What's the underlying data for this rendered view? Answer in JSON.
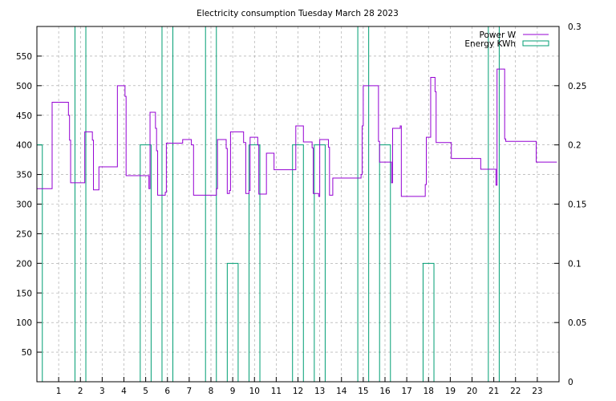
{
  "chart_data": {
    "type": "line",
    "title": "Electricity consumption Tuesday March 28 2023",
    "xlabel": "",
    "ylabel": "",
    "y2label": "",
    "xlim": [
      0,
      24
    ],
    "ylim": [
      0,
      600
    ],
    "y2lim": [
      0,
      0.3
    ],
    "grid": true,
    "legend_position": "top-right",
    "x_ticks": [
      1,
      2,
      3,
      4,
      5,
      6,
      7,
      8,
      9,
      10,
      11,
      12,
      13,
      14,
      15,
      16,
      17,
      18,
      19,
      20,
      21,
      22,
      23
    ],
    "y_ticks": [
      50,
      100,
      150,
      200,
      250,
      300,
      350,
      400,
      450,
      500,
      550
    ],
    "y2_ticks": [
      0,
      0.05,
      0.1,
      0.15,
      0.2,
      0.25,
      0.3
    ],
    "series": [
      {
        "name": "Power W",
        "color": "#9400d3",
        "axis": "y",
        "style": "steps",
        "points": [
          [
            0.0,
            326
          ],
          [
            0.7,
            326
          ],
          [
            0.7,
            472
          ],
          [
            1.45,
            472
          ],
          [
            1.45,
            450
          ],
          [
            1.5,
            450
          ],
          [
            1.5,
            408
          ],
          [
            1.55,
            408
          ],
          [
            1.55,
            336
          ],
          [
            2.2,
            336
          ],
          [
            2.2,
            422
          ],
          [
            2.55,
            422
          ],
          [
            2.55,
            408
          ],
          [
            2.6,
            408
          ],
          [
            2.6,
            324
          ],
          [
            2.85,
            324
          ],
          [
            2.85,
            363
          ],
          [
            3.7,
            363
          ],
          [
            3.7,
            500
          ],
          [
            4.05,
            500
          ],
          [
            4.05,
            482
          ],
          [
            4.1,
            482
          ],
          [
            4.1,
            348
          ],
          [
            5.15,
            348
          ],
          [
            5.15,
            326
          ],
          [
            5.2,
            326
          ],
          [
            5.2,
            455
          ],
          [
            5.45,
            455
          ],
          [
            5.45,
            428
          ],
          [
            5.5,
            428
          ],
          [
            5.5,
            390
          ],
          [
            5.55,
            390
          ],
          [
            5.55,
            315
          ],
          [
            5.9,
            315
          ],
          [
            5.9,
            320
          ],
          [
            5.95,
            320
          ],
          [
            5.95,
            403
          ],
          [
            6.7,
            403
          ],
          [
            6.7,
            409
          ],
          [
            7.1,
            409
          ],
          [
            7.1,
            400
          ],
          [
            7.2,
            400
          ],
          [
            7.2,
            315
          ],
          [
            8.25,
            315
          ],
          [
            8.25,
            326
          ],
          [
            8.3,
            326
          ],
          [
            8.3,
            409
          ],
          [
            8.7,
            409
          ],
          [
            8.7,
            394
          ],
          [
            8.75,
            394
          ],
          [
            8.75,
            318
          ],
          [
            8.85,
            318
          ],
          [
            8.85,
            323
          ],
          [
            8.9,
            323
          ],
          [
            8.9,
            422
          ],
          [
            9.5,
            422
          ],
          [
            9.5,
            404
          ],
          [
            9.6,
            404
          ],
          [
            9.6,
            318
          ],
          [
            9.75,
            318
          ],
          [
            9.75,
            323
          ],
          [
            9.8,
            323
          ],
          [
            9.8,
            413
          ],
          [
            10.15,
            413
          ],
          [
            10.15,
            400
          ],
          [
            10.2,
            400
          ],
          [
            10.2,
            317
          ],
          [
            10.55,
            317
          ],
          [
            10.55,
            386
          ],
          [
            10.9,
            386
          ],
          [
            10.9,
            358
          ],
          [
            11.9,
            358
          ],
          [
            11.9,
            432
          ],
          [
            12.25,
            432
          ],
          [
            12.25,
            405
          ],
          [
            12.65,
            405
          ],
          [
            12.65,
            395
          ],
          [
            12.7,
            395
          ],
          [
            12.7,
            318
          ],
          [
            12.95,
            318
          ],
          [
            12.95,
            313
          ],
          [
            13.0,
            313
          ],
          [
            13.0,
            409
          ],
          [
            13.4,
            409
          ],
          [
            13.4,
            396
          ],
          [
            13.45,
            396
          ],
          [
            13.45,
            315
          ],
          [
            13.6,
            315
          ],
          [
            13.6,
            344
          ],
          [
            14.9,
            344
          ],
          [
            14.9,
            350
          ],
          [
            14.95,
            350
          ],
          [
            14.95,
            432
          ],
          [
            15.0,
            432
          ],
          [
            15.0,
            500
          ],
          [
            15.7,
            500
          ],
          [
            15.7,
            406
          ],
          [
            15.75,
            406
          ],
          [
            15.75,
            371
          ],
          [
            16.3,
            371
          ],
          [
            16.3,
            336
          ],
          [
            16.35,
            336
          ],
          [
            16.35,
            428
          ],
          [
            16.7,
            428
          ],
          [
            16.7,
            432
          ],
          [
            16.75,
            432
          ],
          [
            16.75,
            313
          ],
          [
            17.85,
            313
          ],
          [
            17.85,
            333
          ],
          [
            17.9,
            333
          ],
          [
            17.9,
            413
          ],
          [
            18.1,
            413
          ],
          [
            18.1,
            514
          ],
          [
            18.3,
            514
          ],
          [
            18.3,
            490
          ],
          [
            18.35,
            490
          ],
          [
            18.35,
            404
          ],
          [
            19.05,
            404
          ],
          [
            19.05,
            377
          ],
          [
            20.4,
            377
          ],
          [
            20.4,
            359
          ],
          [
            21.1,
            359
          ],
          [
            21.1,
            332
          ],
          [
            21.15,
            332
          ],
          [
            21.15,
            528
          ],
          [
            21.5,
            528
          ],
          [
            21.5,
            410
          ],
          [
            21.55,
            410
          ],
          [
            21.55,
            406
          ],
          [
            22.95,
            406
          ],
          [
            22.95,
            371
          ],
          [
            23.9,
            371
          ]
        ]
      },
      {
        "name": "Energy KWh",
        "color": "#009e73",
        "axis": "y2",
        "style": "steps",
        "points": [
          [
            0.0,
            0.2
          ],
          [
            0.25,
            0.2
          ],
          [
            0.25,
            0
          ],
          [
            1.75,
            0
          ],
          [
            1.75,
            0.3
          ],
          [
            2.25,
            0.3
          ],
          [
            2.25,
            0
          ],
          [
            4.75,
            0
          ],
          [
            4.75,
            0.2
          ],
          [
            5.25,
            0.2
          ],
          [
            5.25,
            0
          ],
          [
            5.75,
            0
          ],
          [
            5.75,
            0.3
          ],
          [
            6.25,
            0.3
          ],
          [
            6.25,
            0
          ],
          [
            7.75,
            0
          ],
          [
            7.75,
            0.3
          ],
          [
            8.25,
            0.3
          ],
          [
            8.25,
            0
          ],
          [
            8.75,
            0
          ],
          [
            8.75,
            0.1
          ],
          [
            9.25,
            0.1
          ],
          [
            9.25,
            0
          ],
          [
            9.75,
            0
          ],
          [
            9.75,
            0.2
          ],
          [
            10.25,
            0.2
          ],
          [
            10.25,
            0
          ],
          [
            11.75,
            0
          ],
          [
            11.75,
            0.2
          ],
          [
            12.25,
            0.2
          ],
          [
            12.25,
            0
          ],
          [
            12.75,
            0
          ],
          [
            12.75,
            0.2
          ],
          [
            13.25,
            0.2
          ],
          [
            13.25,
            0
          ],
          [
            14.75,
            0
          ],
          [
            14.75,
            0.3
          ],
          [
            15.25,
            0.3
          ],
          [
            15.25,
            0
          ],
          [
            15.75,
            0
          ],
          [
            15.75,
            0.2
          ],
          [
            16.25,
            0.2
          ],
          [
            16.25,
            0
          ],
          [
            17.75,
            0
          ],
          [
            17.75,
            0.1
          ],
          [
            18.25,
            0.1
          ],
          [
            18.25,
            0
          ],
          [
            20.75,
            0
          ],
          [
            20.75,
            0.3
          ],
          [
            21.25,
            0.3
          ],
          [
            21.25,
            0
          ]
        ]
      }
    ]
  }
}
